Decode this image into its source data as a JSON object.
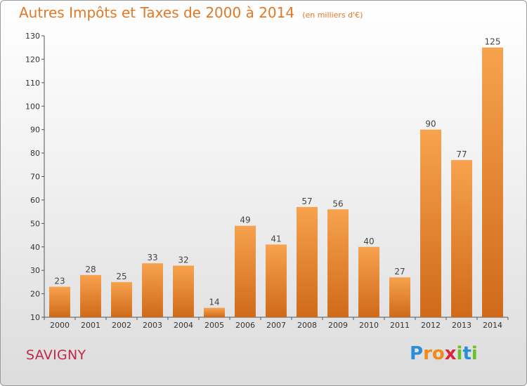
{
  "header": {
    "title": "Autres Impôts et Taxes de 2000 à 2014",
    "unit": "(en milliers d'€)"
  },
  "commune": "SAVIGNY",
  "brand": {
    "name": "Proxiti",
    "letters": [
      {
        "ch": "P",
        "color": "#2a8fd6"
      },
      {
        "ch": "r",
        "color": "#f08a1c"
      },
      {
        "ch": "o",
        "color": "#f08a1c"
      },
      {
        "ch": "x",
        "color": "#d8263c"
      },
      {
        "ch": "i",
        "color": "#6bbf2a"
      },
      {
        "ch": "t",
        "color": "#2a8fd6"
      },
      {
        "ch": "i",
        "color": "#6bbf2a"
      }
    ]
  },
  "colors": {
    "bar_light": "#f7a24e",
    "bar_dark": "#cf6a1a",
    "title": "#e07826",
    "commune": "#c0284a"
  },
  "chart_data": {
    "type": "bar",
    "categories": [
      "2000",
      "2001",
      "2002",
      "2003",
      "2004",
      "2005",
      "2006",
      "2007",
      "2008",
      "2009",
      "2010",
      "2011",
      "2012",
      "2013",
      "2014"
    ],
    "values": [
      23,
      28,
      25,
      33,
      32,
      14,
      49,
      41,
      57,
      56,
      40,
      27,
      90,
      77,
      125
    ],
    "title": "Autres Impôts et Taxes de 2000 à 2014",
    "ylim": [
      10,
      130
    ],
    "yticks": [
      10,
      20,
      30,
      40,
      50,
      60,
      70,
      80,
      90,
      100,
      110,
      120,
      130
    ],
    "grid": false,
    "data_labels": true
  }
}
